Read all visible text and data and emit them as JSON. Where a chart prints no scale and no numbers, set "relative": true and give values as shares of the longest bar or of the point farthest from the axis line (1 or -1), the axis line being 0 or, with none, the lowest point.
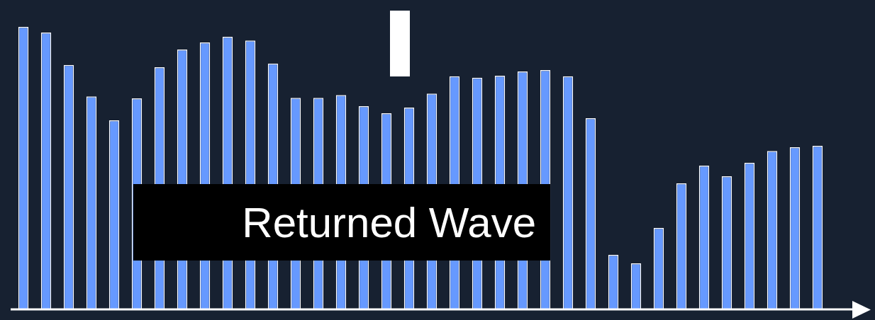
{
  "chart_data": {
    "type": "bar",
    "relative": true,
    "color": "#6699ff",
    "legend": false,
    "categories": [
      null,
      null,
      null,
      null,
      null,
      null,
      null,
      null,
      null,
      null,
      null,
      null,
      null,
      null,
      null,
      null,
      null,
      null,
      null,
      null,
      null,
      null,
      null,
      null,
      null,
      null,
      null,
      null,
      null,
      null,
      null,
      null,
      null,
      null,
      null,
      null
    ],
    "values": [
      1,
      0.98,
      0.865,
      0.754,
      0.669,
      0.747,
      0.857,
      0.92,
      0.945,
      0.965,
      0.952,
      0.87,
      0.749,
      0.749,
      0.759,
      0.719,
      0.694,
      0.714,
      0.764,
      0.825,
      0.82,
      0.827,
      0.842,
      0.847,
      0.825,
      0.677,
      0.193,
      0.163,
      0.288,
      0.446,
      0.509,
      0.471,
      0.519,
      0.561,
      0.574,
      0.579
    ],
    "annotations": [
      "Returned Wave"
    ]
  }
}
